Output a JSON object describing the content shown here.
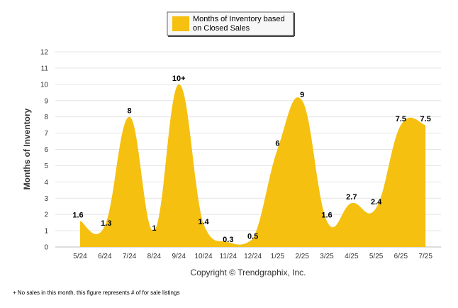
{
  "chart_data": {
    "type": "area",
    "categories": [
      "5/24",
      "6/24",
      "7/24",
      "8/24",
      "9/24",
      "10/24",
      "11/24",
      "12/24",
      "1/25",
      "2/25",
      "3/25",
      "4/25",
      "5/25",
      "6/25",
      "7/25"
    ],
    "series": [
      {
        "name": "Months of Inventory based on Closed Sales",
        "values": [
          1.6,
          1.3,
          8,
          1,
          10,
          1.4,
          0.3,
          0.5,
          6,
          9,
          1.6,
          2.7,
          2.4,
          7.5,
          7.5
        ],
        "labels": [
          "1.6",
          "1.3",
          "8",
          "1",
          "10+",
          "1.4",
          "0.3",
          "0.5",
          "6",
          "9",
          "1.6",
          "2.7",
          "2.4",
          "7.5",
          "7.5"
        ],
        "color": "#F5C010"
      }
    ],
    "ylabel": "Months of Inventory",
    "ylim": [
      0,
      12
    ],
    "yticks": [
      "0",
      "1",
      "2",
      "3",
      "4",
      "5",
      "6",
      "7",
      "8",
      "9",
      "10",
      "11",
      "12"
    ],
    "grid": true,
    "legend_position": "top-center"
  },
  "legend": {
    "line1": "Months of Inventory based",
    "line2": "on Closed Sales"
  },
  "copyright": "Copyright © Trendgraphix, Inc.",
  "footnote": "+  No sales in this month, this figure represents # of for sale listings"
}
